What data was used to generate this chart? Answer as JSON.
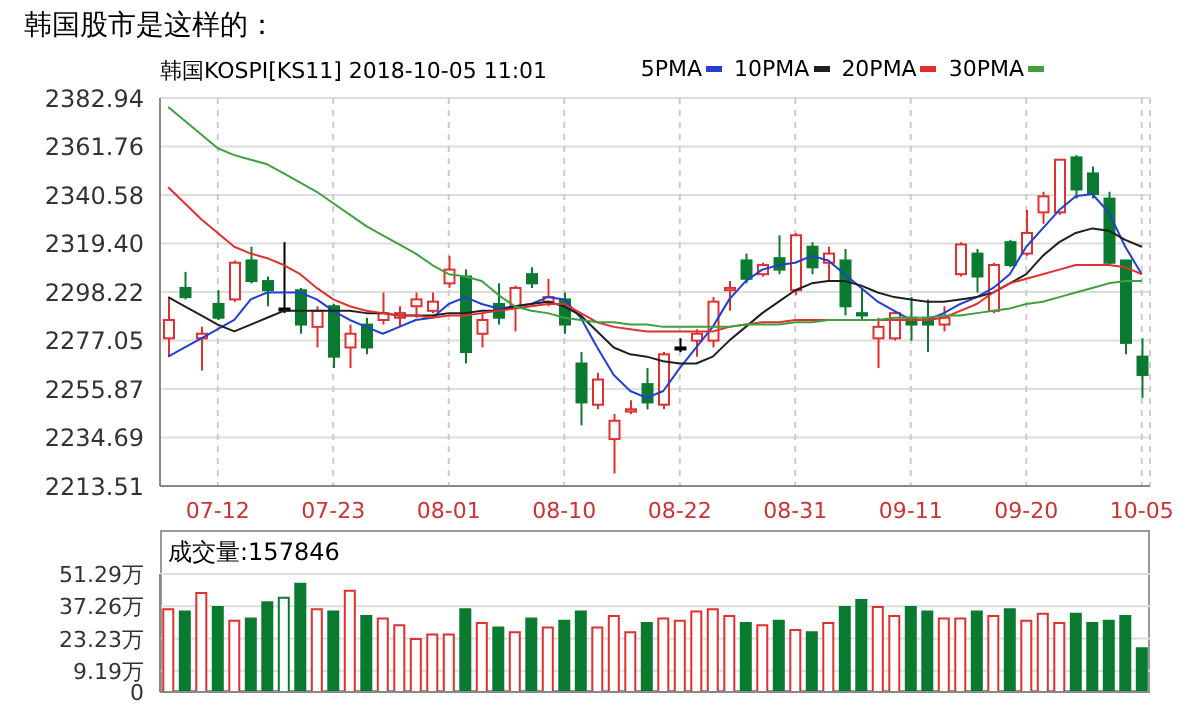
{
  "chart_data": [
    {
      "type": "candlestick",
      "title": "韩国股市是这样的：",
      "subtitle": "韩国KOSPI[KS11] 2018-10-05 11:01",
      "categories": [
        null,
        null,
        null,
        "07-12",
        null,
        null,
        null,
        null,
        null,
        null,
        "07-23",
        null,
        null,
        null,
        null,
        null,
        null,
        "08-01",
        null,
        null,
        null,
        null,
        null,
        null,
        "08-10",
        null,
        null,
        null,
        null,
        null,
        null,
        "08-22",
        null,
        null,
        null,
        null,
        null,
        null,
        "08-31",
        null,
        null,
        null,
        null,
        null,
        null,
        "09-11",
        null,
        null,
        null,
        null,
        null,
        null,
        "09-20",
        null,
        null,
        null,
        null,
        null,
        null,
        "10-05"
      ],
      "ylim": [
        2213.51,
        2382.94
      ],
      "yticks": [
        2213.51,
        2234.69,
        2255.87,
        2277.05,
        2298.22,
        {
          "value": 2319.4,
          "label": "2319.40"
        },
        2340.58,
        2361.76,
        2382.94
      ],
      "ohlc": [
        [
          2278,
          2296,
          2270,
          2286
        ],
        [
          2300,
          2307,
          2295,
          2296
        ],
        [
          2278,
          2283,
          2264,
          2280
        ],
        [
          2293,
          2299,
          2286,
          2287
        ],
        [
          2295,
          2312,
          2294,
          2311
        ],
        [
          2312,
          2318,
          2302,
          2303
        ],
        [
          2303,
          2305,
          2292,
          2299
        ],
        [
          2291,
          2320,
          2289,
          2291
        ],
        [
          2299,
          2300,
          2280,
          2284
        ],
        [
          2283,
          2292,
          2274,
          2290
        ],
        [
          2292,
          2293,
          2265,
          2270
        ],
        [
          2274,
          2284,
          2265,
          2280
        ],
        [
          2284,
          2287,
          2271,
          2274
        ],
        [
          2286,
          2298,
          2284,
          2289
        ],
        [
          2287,
          2292,
          2283,
          2289
        ],
        [
          2292,
          2298,
          2287,
          2295
        ],
        [
          2290,
          2298,
          2289,
          2294
        ],
        [
          2302,
          2314,
          2300,
          2308
        ],
        [
          2305,
          2308,
          2267,
          2272
        ],
        [
          2280,
          2289,
          2274,
          2286
        ],
        [
          2293,
          2302,
          2284,
          2287
        ],
        [
          2292,
          2301,
          2281,
          2300
        ],
        [
          2306,
          2309,
          2300,
          2302
        ],
        [
          2294,
          2304,
          2292,
          2296
        ],
        [
          2295,
          2298,
          2280,
          2284
        ],
        [
          2267,
          2272,
          2240,
          2250
        ],
        [
          2249,
          2263,
          2247,
          2260
        ],
        [
          2234,
          2245,
          2219,
          2242
        ],
        [
          2246,
          2251,
          2245,
          2247
        ],
        [
          2258,
          2265,
          2247,
          2250
        ],
        [
          2249,
          2272,
          2247,
          2271
        ],
        [
          2274,
          2278,
          2272,
          2274
        ],
        [
          2277,
          2282,
          2270,
          2280
        ],
        [
          2277,
          2296,
          2274,
          2294
        ],
        [
          2299,
          2303,
          2290,
          2300
        ],
        [
          2312,
          2315,
          2302,
          2304
        ],
        [
          2306,
          2311,
          2305,
          2310
        ],
        [
          2313,
          2323,
          2306,
          2308
        ],
        [
          2299,
          2324,
          2297,
          2323
        ],
        [
          2318,
          2320,
          2306,
          2309
        ],
        [
          2311,
          2318,
          2303,
          2315
        ],
        [
          2312,
          2317,
          2288,
          2292
        ],
        [
          2289,
          2300,
          2286,
          2288
        ],
        [
          2278,
          2287,
          2265,
          2283
        ],
        [
          2278,
          2290,
          2277,
          2289
        ],
        [
          2287,
          2296,
          2277,
          2284
        ],
        [
          2287,
          2295,
          2272,
          2284
        ],
        [
          2284,
          2292,
          2281,
          2287
        ],
        [
          2306,
          2320,
          2305,
          2319
        ],
        [
          2315,
          2317,
          2298,
          2305
        ],
        [
          2290,
          2311,
          2289,
          2310
        ],
        [
          2320,
          2321,
          2309,
          2310
        ],
        [
          2315,
          2334,
          2314,
          2324
        ],
        [
          2333,
          2342,
          2328,
          2340
        ],
        [
          2333,
          2356,
          2332,
          2356
        ],
        [
          2357,
          2358,
          2339,
          2343
        ],
        [
          2350,
          2353,
          2339,
          2341
        ],
        [
          2339,
          2342,
          2310,
          2311
        ],
        [
          2312,
          2312,
          2271,
          2276
        ],
        [
          2270,
          2278,
          2252,
          2262
        ]
      ],
      "colors": [
        "#e03030",
        "#0a7a30",
        "#e03030",
        "#0a7a30",
        "#e03030",
        "#0a7a30",
        "#0a7a30",
        "#000000",
        "#0a7a30",
        "#e03030",
        "#0a7a30",
        "#e03030",
        "#0a7a30",
        "#e03030",
        "#e03030",
        "#e03030",
        "#e03030",
        "#e03030",
        "#0a7a30",
        "#e03030",
        "#0a7a30",
        "#e03030",
        "#0a7a30",
        "#e03030",
        "#0a7a30",
        "#0a7a30",
        "#e03030",
        "#e03030",
        "#e03030",
        "#0a7a30",
        "#e03030",
        "#000000",
        "#e03030",
        "#e03030",
        "#e03030",
        "#0a7a30",
        "#e03030",
        "#0a7a30",
        "#e03030",
        "#0a7a30",
        "#e03030",
        "#0a7a30",
        "#0a7a30",
        "#e03030",
        "#e03030",
        "#0a7a30",
        "#0a7a30",
        "#e03030",
        "#e03030",
        "#0a7a30",
        "#e03030",
        "#0a7a30",
        "#e03030",
        "#e03030",
        "#e03030",
        "#0a7a30",
        "#0a7a30",
        "#0a7a30",
        "#0a7a30",
        "#0a7a30"
      ],
      "series": [
        {
          "type": "line",
          "name": "5PMA",
          "color": "#2040d0",
          "values": [
            2270,
            2274,
            2278,
            2282,
            2286,
            2295,
            2298,
            2298,
            2298,
            2295,
            2290,
            2286,
            2283,
            2280,
            2283,
            2286,
            2287,
            2293,
            2296,
            2293,
            2291,
            2292,
            2293,
            2296,
            2295,
            2287,
            2274,
            2262,
            2255,
            2252,
            2255,
            2265,
            2274,
            2283,
            2295,
            2303,
            2308,
            2310,
            2311,
            2314,
            2312,
            2306,
            2300,
            2294,
            2290,
            2286,
            2286,
            2289,
            2293,
            2296,
            2300,
            2306,
            2318,
            2326,
            2334,
            2340,
            2341,
            2333,
            2318,
            2306
          ]
        },
        {
          "type": "line",
          "name": "10PMA",
          "color": "#202020",
          "values": [
            2296,
            2292,
            2288,
            2284,
            2281,
            2284,
            2287,
            2290,
            2290,
            2290,
            2290,
            2290,
            2289,
            2289,
            2288,
            2288,
            2288,
            2289,
            2289,
            2290,
            2290,
            2292,
            2293,
            2294,
            2292,
            2288,
            2281,
            2274,
            2271,
            2270,
            2268,
            2267,
            2267,
            2270,
            2277,
            2283,
            2289,
            2294,
            2299,
            2302,
            2303,
            2303,
            2301,
            2298,
            2296,
            2295,
            2294,
            2294,
            2295,
            2296,
            2298,
            2302,
            2306,
            2314,
            2320,
            2324,
            2326,
            2325,
            2321,
            2318
          ]
        },
        {
          "type": "line",
          "name": "20PMA",
          "color": "#e03030",
          "values": [
            2344,
            2337,
            2330,
            2324,
            2318,
            2315,
            2313,
            2310,
            2306,
            2300,
            2295,
            2292,
            2290,
            2289,
            2288,
            2288,
            2287,
            2288,
            2288,
            2289,
            2290,
            2291,
            2292,
            2293,
            2293,
            2289,
            2285,
            2283,
            2282,
            2281,
            2281,
            2281,
            2281,
            2281,
            2283,
            2284,
            2285,
            2285,
            2286,
            2286,
            2286,
            2286,
            2286,
            2286,
            2286,
            2286,
            2286,
            2287,
            2290,
            2293,
            2298,
            2302,
            2304,
            2306,
            2308,
            2310,
            2310,
            2310,
            2309,
            2306
          ]
        },
        {
          "type": "line",
          "name": "30PMA",
          "color": "#40a040",
          "values": [
            2379,
            2373,
            2367,
            2361,
            2358,
            2356,
            2354,
            2350,
            2346,
            2342,
            2337,
            2332,
            2327,
            2323,
            2319,
            2315,
            2310,
            2306,
            2305,
            2303,
            2297,
            2292,
            2290,
            2289,
            2287,
            2286,
            2285,
            2285,
            2284,
            2284,
            2283,
            2283,
            2283,
            2283,
            2283,
            2284,
            2284,
            2284,
            2285,
            2285,
            2286,
            2286,
            2286,
            2286,
            2287,
            2287,
            2287,
            2288,
            2288,
            2289,
            2290,
            2291,
            2293,
            2294,
            2296,
            2298,
            2300,
            2302,
            2303,
            2303
          ]
        }
      ],
      "grid": true,
      "legend": "top right",
      "line_style": "solid",
      "marker": "none"
    },
    {
      "type": "bar",
      "title": "成交量:157846",
      "categories": [
        null,
        null,
        null,
        null,
        null,
        null,
        null,
        null,
        null,
        null,
        null,
        null,
        null,
        null,
        null,
        null,
        null,
        null,
        null,
        null,
        null,
        null,
        null,
        null,
        null,
        null,
        null,
        null,
        null,
        null,
        null,
        null,
        null,
        null,
        null,
        null,
        null,
        null,
        null,
        null,
        null,
        null,
        null,
        null,
        null,
        null,
        null,
        null,
        null,
        null,
        null,
        null,
        null,
        null,
        null,
        null,
        null,
        null,
        null,
        null
      ],
      "values": [
        36,
        35,
        43,
        37,
        31,
        32,
        39,
        41,
        47,
        36,
        35,
        44,
        33,
        32,
        29,
        23,
        25,
        25,
        36,
        30,
        28,
        26,
        32,
        28,
        31,
        35,
        28,
        33,
        26,
        30,
        32,
        31,
        35,
        36,
        33,
        30,
        29,
        31,
        27,
        26,
        30,
        37,
        40,
        37,
        33,
        37,
        35,
        32,
        32,
        35,
        33,
        36,
        31,
        34,
        30,
        34,
        30,
        31,
        33,
        19
      ],
      "colors": [
        "#e03030",
        "#0a7a30",
        "#e03030",
        "#0a7a30",
        "#e03030",
        "#0a7a30",
        "#0a7a30",
        "#0a7a30",
        "#0a7a30",
        "#e03030",
        "#0a7a30",
        "#e03030",
        "#0a7a30",
        "#e03030",
        "#e03030",
        "#e03030",
        "#e03030",
        "#e03030",
        "#0a7a30",
        "#e03030",
        "#0a7a30",
        "#e03030",
        "#0a7a30",
        "#e03030",
        "#0a7a30",
        "#0a7a30",
        "#e03030",
        "#e03030",
        "#e03030",
        "#0a7a30",
        "#e03030",
        "#e03030",
        "#e03030",
        "#e03030",
        "#e03030",
        "#0a7a30",
        "#e03030",
        "#0a7a30",
        "#e03030",
        "#0a7a30",
        "#e03030",
        "#0a7a30",
        "#0a7a30",
        "#e03030",
        "#e03030",
        "#0a7a30",
        "#0a7a30",
        "#e03030",
        "#e03030",
        "#0a7a30",
        "#e03030",
        "#0a7a30",
        "#e03030",
        "#e03030",
        "#e03030",
        "#0a7a30",
        "#0a7a30",
        "#0a7a30",
        "#0a7a30",
        "#0a7a30"
      ],
      "ylim": [
        0,
        51.29
      ],
      "yticks": [
        0,
        {
          "value": 9.19,
          "label": "9.19万"
        },
        {
          "value": 23.23,
          "label": "23.23万"
        },
        {
          "value": 37.26,
          "label": "37.26万"
        },
        {
          "value": 51.29,
          "label": "51.29万"
        }
      ],
      "grid": "y",
      "tick_labels": "y"
    }
  ]
}
